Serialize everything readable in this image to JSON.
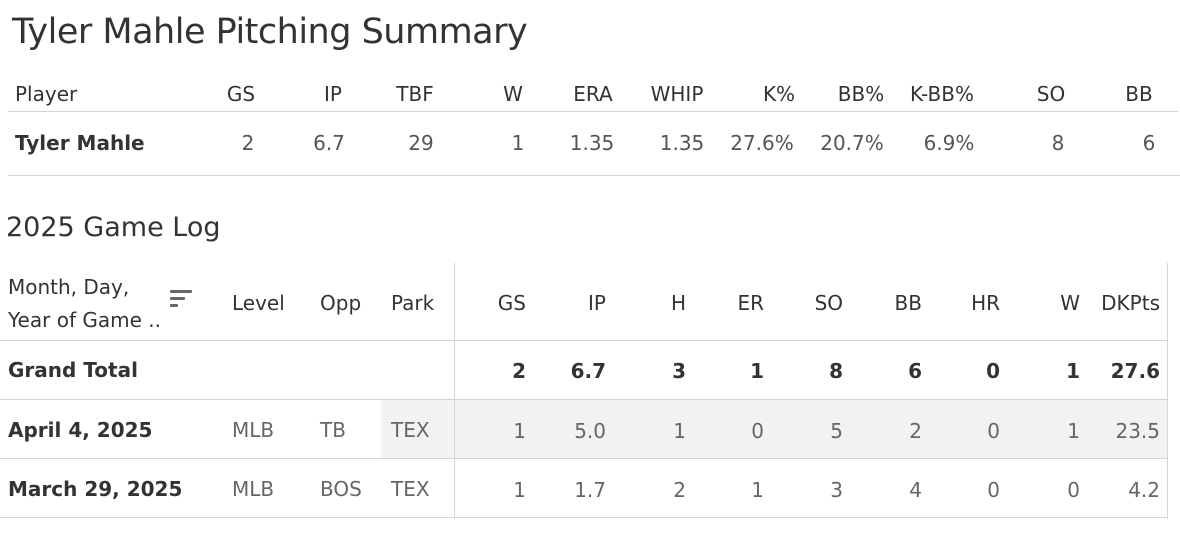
{
  "title": "Tyler Mahle Pitching Summary",
  "summary": {
    "headers": [
      "Player",
      "GS",
      "IP",
      "TBF",
      "W",
      "ERA",
      "WHIP",
      "K%",
      "BB%",
      "K-BB%",
      "SO",
      "BB"
    ],
    "row": [
      "Tyler Mahle",
      "2",
      "6.7",
      "29",
      "1",
      "1.35",
      "1.35",
      "27.6%",
      "20.7%",
      "6.9%",
      "8",
      "6"
    ]
  },
  "gamelog": {
    "title": "2025 Game Log",
    "date_header_line1": "Month, Day,",
    "date_header_line2": "Year of Game ..",
    "headers": [
      "Level",
      "Opp",
      "Park",
      "GS",
      "IP",
      "H",
      "ER",
      "SO",
      "BB",
      "HR",
      "W",
      "DKPts"
    ],
    "total": {
      "label": "Grand Total",
      "values": [
        "2",
        "6.7",
        "3",
        "1",
        "8",
        "6",
        "0",
        "1",
        "27.6"
      ]
    },
    "rows": [
      {
        "date": "April 4, 2025",
        "level": "MLB",
        "opp": "TB",
        "park": "TEX",
        "values": [
          "1",
          "5.0",
          "1",
          "0",
          "5",
          "2",
          "0",
          "1",
          "23.5"
        ]
      },
      {
        "date": "March 29, 2025",
        "level": "MLB",
        "opp": "BOS",
        "park": "TEX",
        "values": [
          "1",
          "1.7",
          "2",
          "1",
          "3",
          "4",
          "0",
          "0",
          "4.2"
        ]
      }
    ]
  },
  "icons": {
    "sort": "sort-icon"
  }
}
